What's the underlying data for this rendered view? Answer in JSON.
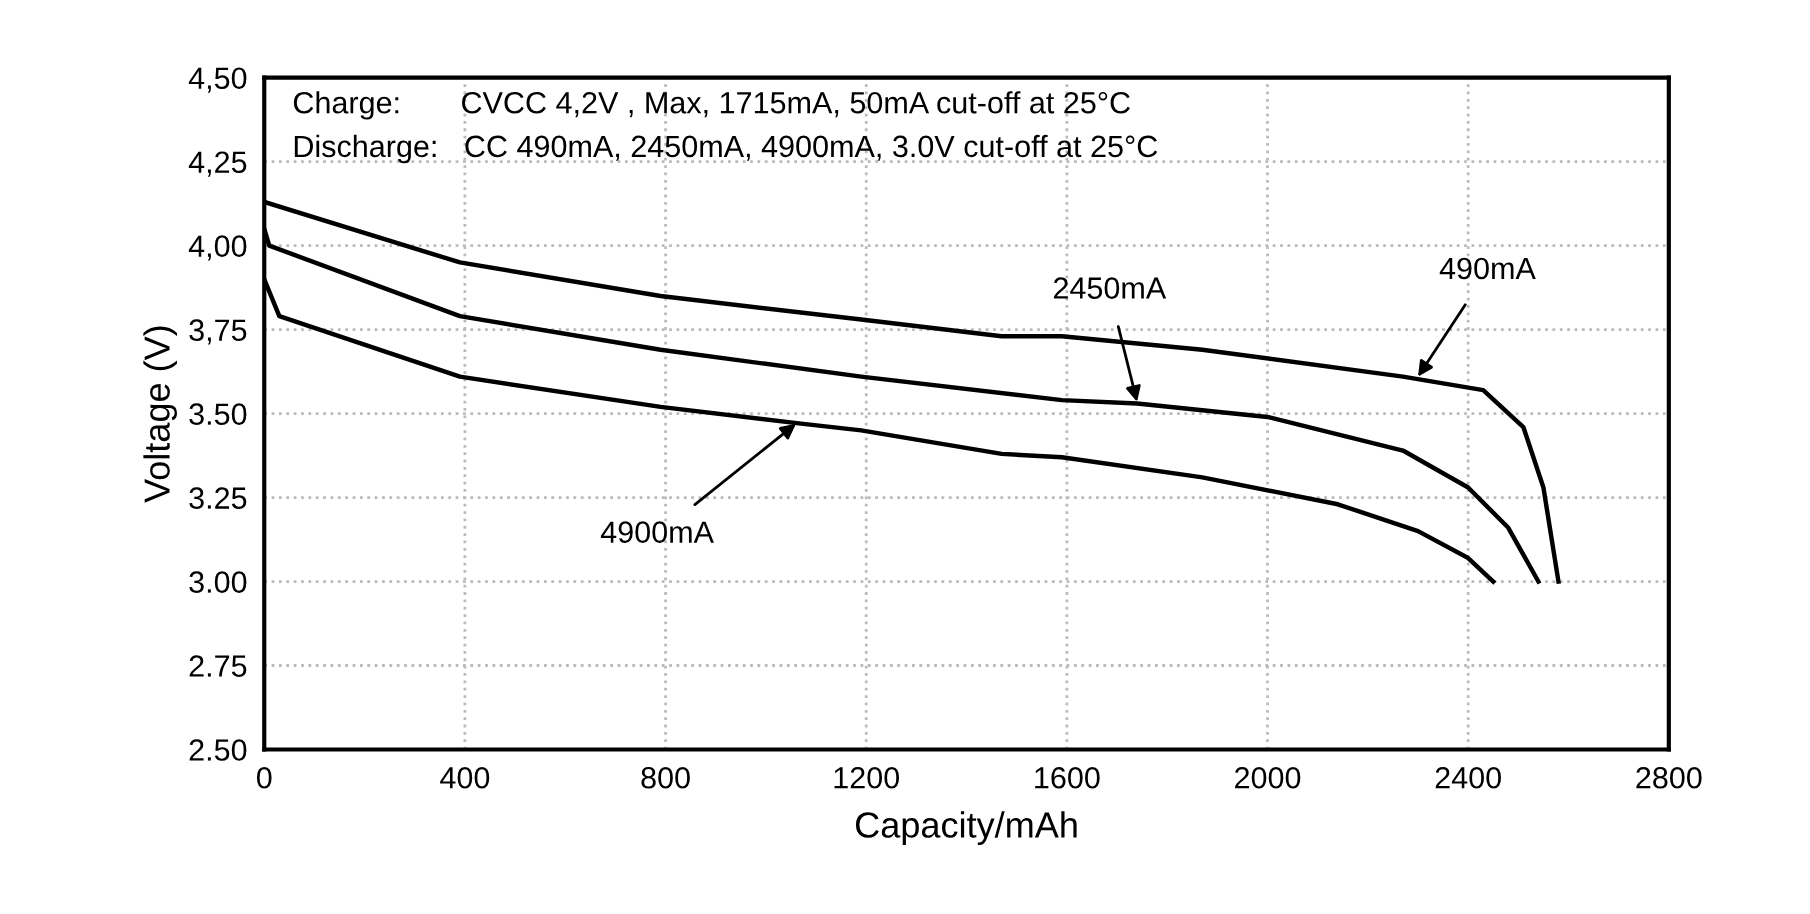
{
  "chart_data": {
    "type": "line",
    "xlabel": "Capacity/mAh",
    "ylabel": "Voltage (V)",
    "xlim": [
      0,
      2800
    ],
    "xticks": [
      0,
      400,
      800,
      1200,
      1600,
      2000,
      2400,
      2800
    ],
    "ylim": [
      2.5,
      4.5
    ],
    "yticks": [
      {
        "value": 2.5,
        "label": "2.50"
      },
      {
        "value": 2.75,
        "label": "2.75"
      },
      {
        "value": 3.0,
        "label": "3.00"
      },
      {
        "value": 3.25,
        "label": "3.25"
      },
      {
        "value": 3.5,
        "label": "3.50"
      },
      {
        "value": 3.75,
        "label": "3,75"
      },
      {
        "value": 4.0,
        "label": "4,00"
      },
      {
        "value": 4.25,
        "label": "4,25"
      },
      {
        "value": 4.5,
        "label": "4,50"
      }
    ],
    "grid": true,
    "marker": "none",
    "line_style": "solid",
    "series": [
      {
        "color": "#000000",
        "x": [
          0,
          390,
          790,
          1190,
          1470,
          1590,
          1870,
          2270,
          2430,
          2510,
          2550,
          2580
        ],
        "values": [
          4.13,
          3.95,
          3.85,
          3.78,
          3.73,
          3.73,
          3.69,
          3.61,
          3.57,
          3.46,
          3.28,
          3.0
        ]
      },
      {
        "color": "#000000",
        "x": [
          0,
          10,
          390,
          790,
          1190,
          1590,
          1740,
          2000,
          2270,
          2400,
          2480,
          2540
        ],
        "values": [
          4.05,
          4.0,
          3.79,
          3.69,
          3.61,
          3.54,
          3.53,
          3.49,
          3.39,
          3.28,
          3.16,
          3.0
        ]
      },
      {
        "color": "#000000",
        "x": [
          0,
          30,
          390,
          790,
          1070,
          1190,
          1470,
          1590,
          1870,
          2140,
          2300,
          2400,
          2450
        ],
        "values": [
          3.9,
          3.79,
          3.61,
          3.52,
          3.47,
          3.45,
          3.38,
          3.37,
          3.31,
          3.23,
          3.15,
          3.07,
          3.0
        ]
      }
    ],
    "annotations": [
      "Charge:       CVCC 4,2V , Max, 1715mA, 50mA cut-off at 25°C",
      "Discharge:   CC 490mA, 2450mA, 4900mA, 3.0V cut-off at 25°C",
      {
        "text": "490mA",
        "x": 2300,
        "y": 3.61
      },
      {
        "text": "2450mA",
        "x": 1740,
        "y": 3.535
      },
      {
        "text": "4900mA",
        "x": 1060,
        "y": 3.47
      }
    ]
  }
}
